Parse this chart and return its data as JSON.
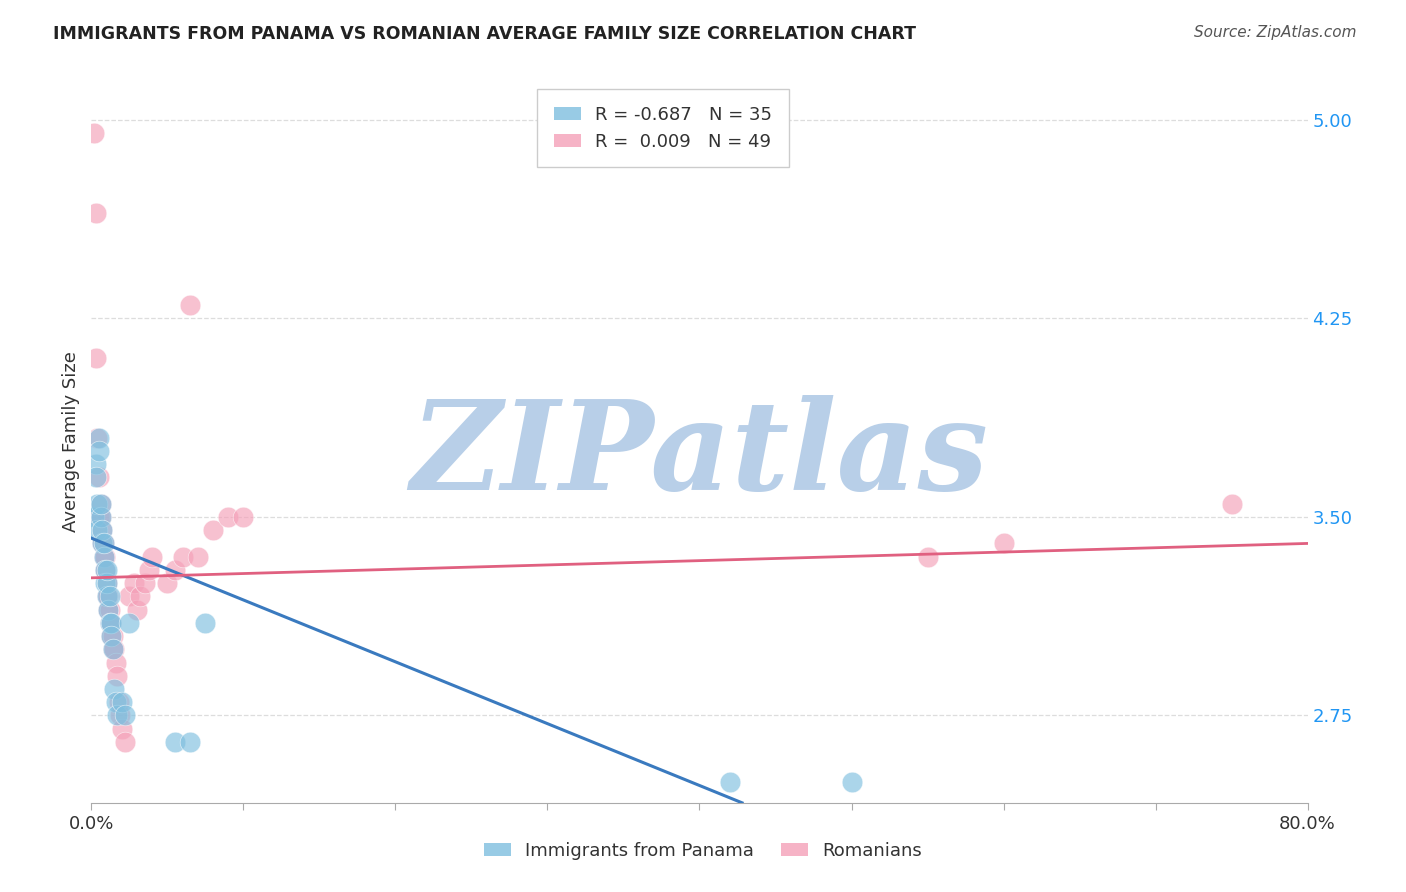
{
  "title": "IMMIGRANTS FROM PANAMA VS ROMANIAN AVERAGE FAMILY SIZE CORRELATION CHART",
  "source": "Source: ZipAtlas.com",
  "ylabel": "Average Family Size",
  "xmin": 0.0,
  "xmax": 0.8,
  "ymin": 2.42,
  "ymax": 5.15,
  "yticks_right": [
    2.75,
    3.5,
    4.25,
    5.0
  ],
  "xticks": [
    0.0,
    0.1,
    0.2,
    0.3,
    0.4,
    0.5,
    0.6,
    0.7,
    0.8
  ],
  "series1_name": "Immigrants from Panama",
  "series1_color": "#7fbfdf",
  "series1_R": -0.687,
  "series1_N": 35,
  "series1_x": [
    0.002,
    0.003,
    0.003,
    0.004,
    0.004,
    0.005,
    0.005,
    0.006,
    0.006,
    0.007,
    0.007,
    0.008,
    0.008,
    0.009,
    0.009,
    0.01,
    0.01,
    0.01,
    0.011,
    0.012,
    0.012,
    0.013,
    0.013,
    0.014,
    0.015,
    0.016,
    0.017,
    0.02,
    0.022,
    0.025,
    0.055,
    0.065,
    0.075,
    0.42,
    0.5
  ],
  "series1_y": [
    3.5,
    3.7,
    3.65,
    3.55,
    3.45,
    3.8,
    3.75,
    3.5,
    3.55,
    3.4,
    3.45,
    3.35,
    3.4,
    3.3,
    3.25,
    3.2,
    3.25,
    3.3,
    3.15,
    3.1,
    3.2,
    3.1,
    3.05,
    3.0,
    2.85,
    2.8,
    2.75,
    2.8,
    2.75,
    3.1,
    2.65,
    2.65,
    3.1,
    2.5,
    2.5
  ],
  "series2_name": "Romanians",
  "series2_color": "#f4a0b8",
  "series2_R": 0.009,
  "series2_N": 49,
  "series2_x": [
    0.002,
    0.003,
    0.003,
    0.004,
    0.005,
    0.005,
    0.006,
    0.006,
    0.007,
    0.007,
    0.008,
    0.008,
    0.009,
    0.009,
    0.01,
    0.01,
    0.011,
    0.011,
    0.012,
    0.012,
    0.013,
    0.013,
    0.014,
    0.014,
    0.015,
    0.016,
    0.017,
    0.018,
    0.019,
    0.02,
    0.022,
    0.025,
    0.028,
    0.03,
    0.032,
    0.035,
    0.038,
    0.04,
    0.05,
    0.055,
    0.06,
    0.065,
    0.07,
    0.08,
    0.09,
    0.1,
    0.55,
    0.6,
    0.75
  ],
  "series2_y": [
    4.95,
    4.65,
    4.1,
    3.8,
    3.65,
    3.5,
    3.55,
    3.5,
    3.45,
    3.4,
    3.4,
    3.35,
    3.35,
    3.3,
    3.25,
    3.2,
    3.2,
    3.15,
    3.15,
    3.1,
    3.1,
    3.05,
    3.05,
    3.0,
    3.0,
    2.95,
    2.9,
    2.8,
    2.75,
    2.7,
    2.65,
    3.2,
    3.25,
    3.15,
    3.2,
    3.25,
    3.3,
    3.35,
    3.25,
    3.3,
    3.35,
    4.3,
    3.35,
    3.45,
    3.5,
    3.5,
    3.35,
    3.4,
    3.55
  ],
  "trendline1_x": [
    0.0,
    0.428
  ],
  "trendline1_y": [
    3.42,
    2.42
  ],
  "trendline2_x": [
    0.0,
    0.8
  ],
  "trendline2_y": [
    3.27,
    3.4
  ],
  "grid_color": "#dddddd",
  "background_color": "#ffffff",
  "watermark_zip": "ZIP",
  "watermark_atlas": "atlas",
  "watermark_color_zip": "#b8cfe8",
  "watermark_color_atlas": "#c8d8e8"
}
